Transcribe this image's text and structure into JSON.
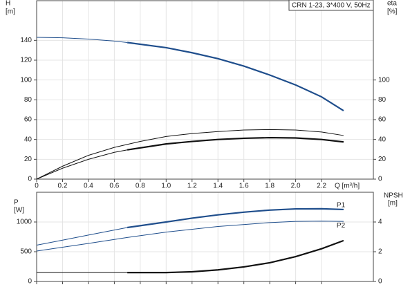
{
  "chart_data": [
    {
      "type": "line",
      "title": "CRN 1-23, 3*400 V, 50Hz",
      "ylabel": "H",
      "yunit": "[m]",
      "y2label": "eta",
      "y2unit": "[%]",
      "xlabel": "Q [m³/h]",
      "xlim": [
        0,
        2.6
      ],
      "xticks": [
        0,
        0.2,
        0.4,
        0.6,
        0.8,
        {
          "value": 1,
          "label": "1.0"
        },
        1.2,
        1.4,
        1.6,
        1.8,
        {
          "value": 2,
          "label": "2.0"
        },
        2.2
      ],
      "ylim": [
        0,
        180
      ],
      "yticks": [
        0,
        20,
        40,
        60,
        80,
        100,
        120,
        140
      ],
      "y2lim": [
        0,
        180
      ],
      "y2ticks": [
        0,
        20,
        40,
        60,
        80,
        100
      ],
      "grid": true,
      "series": [
        {
          "color": "#1f4e8c",
          "width": 1,
          "x": [
            0,
            0.2,
            0.4,
            0.6,
            0.7
          ],
          "values": [
            143,
            142.6,
            141.3,
            139.3,
            137.8
          ]
        },
        {
          "color": "#1f4e8c",
          "width": 2.2,
          "x": [
            0.7,
            1.0,
            1.2,
            1.4,
            1.6,
            1.8,
            2.0,
            2.2,
            2.37
          ],
          "values": [
            137.8,
            132.6,
            127.5,
            121.5,
            114,
            105,
            95,
            83,
            69
          ]
        },
        {
          "color": "#111111",
          "width": 1,
          "axis": "y2",
          "x": [
            0,
            0.2,
            0.4,
            0.6,
            0.8,
            1.0,
            1.2,
            1.4,
            1.6,
            1.8,
            2.0,
            2.2,
            2.37
          ],
          "values": [
            0,
            13,
            24,
            32,
            38,
            43,
            46,
            48,
            49.5,
            50,
            49.5,
            47.5,
            44
          ]
        },
        {
          "color": "#111111",
          "width": 1,
          "axis": "y2",
          "x": [
            0,
            0.2,
            0.4,
            0.6,
            0.7
          ],
          "values": [
            0,
            11,
            20,
            27,
            29.5
          ]
        },
        {
          "color": "#111111",
          "width": 2.2,
          "axis": "y2",
          "x": [
            0.7,
            1.0,
            1.2,
            1.4,
            1.6,
            1.8,
            2.0,
            2.2,
            2.37
          ],
          "values": [
            29.5,
            35.5,
            38,
            40,
            41.2,
            41.8,
            41.5,
            40,
            37.5
          ]
        }
      ]
    },
    {
      "type": "line",
      "ylabel": "P",
      "yunit": "[W]",
      "y2label": "NPSH",
      "y2unit": "[m]",
      "ylim": [
        0,
        1500
      ],
      "yticks": [
        0,
        500,
        1000
      ],
      "y2lim": [
        0,
        6
      ],
      "y2ticks": [
        0,
        2,
        4
      ],
      "grid": true,
      "series": [
        {
          "color": "#1f4e8c",
          "width": 1,
          "x": [
            0,
            0.2,
            0.4,
            0.6,
            0.7
          ],
          "values": [
            610,
            695,
            780,
            865,
            907
          ]
        },
        {
          "color": "#1f4e8c",
          "width": 2.2,
          "label": "P1",
          "x": [
            0.7,
            1.0,
            1.2,
            1.4,
            1.6,
            1.8,
            2.0,
            2.2,
            2.37
          ],
          "values": [
            907,
            1000,
            1065,
            1120,
            1165,
            1200,
            1220,
            1222,
            1210
          ]
        },
        {
          "color": "#1f4e8c",
          "width": 1,
          "label": "P2",
          "x": [
            0,
            0.4,
            0.7,
            1.0,
            1.4,
            1.8,
            2.0,
            2.2,
            2.37
          ],
          "values": [
            512,
            640,
            740,
            830,
            925,
            990,
            1010,
            1015,
            1010
          ]
        },
        {
          "color": "#111111",
          "width": 1,
          "axis": "y2",
          "x": [
            0,
            0.7
          ],
          "values": [
            0.6,
            0.6
          ]
        },
        {
          "color": "#111111",
          "width": 2.2,
          "axis": "y2",
          "x": [
            0.7,
            1.0,
            1.2,
            1.4,
            1.6,
            1.8,
            2.0,
            2.2,
            2.37
          ],
          "values": [
            0.6,
            0.6,
            0.65,
            0.78,
            0.98,
            1.26,
            1.67,
            2.2,
            2.75
          ]
        }
      ]
    }
  ]
}
